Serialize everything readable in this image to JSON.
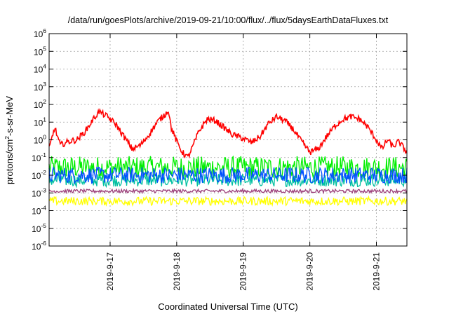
{
  "chart_data": {
    "type": "line",
    "title": "/data/run/goesPlots/archive/2019-09-21/10:00/flux/../flux/5daysEarthDataFluxes.txt",
    "xlabel": "Coordinated Universal Time (UTC)",
    "ylabel": {
      "prefix": "protons/cm",
      "exponent": "2",
      "suffix": "-s-sr-MeV"
    },
    "y_scale": "log",
    "ylim": [
      1e-06,
      1000000.0
    ],
    "y_ticks": [
      {
        "base": "10",
        "exp": "-6",
        "value": 1e-06
      },
      {
        "base": "10",
        "exp": "-5",
        "value": 1e-05
      },
      {
        "base": "10",
        "exp": "-4",
        "value": 0.0001
      },
      {
        "base": "10",
        "exp": "-3",
        "value": 0.001
      },
      {
        "base": "10",
        "exp": "-2",
        "value": 0.01
      },
      {
        "base": "10",
        "exp": "-1",
        "value": 0.1
      },
      {
        "base": "10",
        "exp": "0",
        "value": 1.0
      },
      {
        "base": "10",
        "exp": "1",
        "value": 10.0
      },
      {
        "base": "10",
        "exp": "2",
        "value": 100.0
      },
      {
        "base": "10",
        "exp": "3",
        "value": 1000.0
      },
      {
        "base": "10",
        "exp": "4",
        "value": 10000.0
      },
      {
        "base": "10",
        "exp": "5",
        "value": 100000.0
      },
      {
        "base": "10",
        "exp": "6",
        "value": 1000000.0
      }
    ],
    "xlim": [
      "2019-09-16 02:00",
      "2019-09-21 11:00"
    ],
    "x_ticks": [
      "2019-9-17",
      "2019-9-18",
      "2019-9-19",
      "2019-9-20",
      "2019-9-21"
    ],
    "x_tick_dates": [
      "2019-09-17 00:00",
      "2019-09-18 00:00",
      "2019-09-19 00:00",
      "2019-09-20 00:00",
      "2019-09-21 00:00"
    ],
    "grid": true,
    "legend": "none",
    "series": [
      {
        "color": "#ff0000",
        "style": "noisy",
        "points": [
          [
            "2019-09-16 02:00",
            0.3
          ],
          [
            "2019-09-16 04:00",
            5
          ],
          [
            "2019-09-16 06:00",
            0.5
          ],
          [
            "2019-09-16 09:00",
            0.8
          ],
          [
            "2019-09-16 12:00",
            1.0
          ],
          [
            "2019-09-16 15:00",
            3
          ],
          [
            "2019-09-16 18:00",
            15
          ],
          [
            "2019-09-16 20:00",
            40
          ],
          [
            "2019-09-16 23:00",
            20
          ],
          [
            "2019-09-17 02:00",
            8
          ],
          [
            "2019-09-17 05:00",
            1.5
          ],
          [
            "2019-09-17 08:00",
            0.3
          ],
          [
            "2019-09-17 11:00",
            0.5
          ],
          [
            "2019-09-17 14:00",
            2
          ],
          [
            "2019-09-17 17:00",
            10
          ],
          [
            "2019-09-17 20:00",
            30
          ],
          [
            "2019-09-17 21:00",
            50
          ],
          [
            "2019-09-17 22:00",
            5
          ],
          [
            "2019-09-18 00:00",
            0.8
          ],
          [
            "2019-09-18 02:00",
            0.2
          ],
          [
            "2019-09-18 04:00",
            0.1
          ],
          [
            "2019-09-18 06:00",
            0.5
          ],
          [
            "2019-09-18 08:00",
            3
          ],
          [
            "2019-09-18 11:00",
            15
          ],
          [
            "2019-09-18 14:00",
            12
          ],
          [
            "2019-09-18 17:00",
            5
          ],
          [
            "2019-09-18 20:00",
            2
          ],
          [
            "2019-09-19 00:00",
            1.2
          ],
          [
            "2019-09-19 03:00",
            0.7
          ],
          [
            "2019-09-19 06:00",
            1.5
          ],
          [
            "2019-09-19 09:00",
            8
          ],
          [
            "2019-09-19 12:00",
            20
          ],
          [
            "2019-09-19 15:00",
            12
          ],
          [
            "2019-09-19 18:00",
            4
          ],
          [
            "2019-09-19 21:00",
            0.8
          ],
          [
            "2019-09-20 00:00",
            0.2
          ],
          [
            "2019-09-20 03:00",
            0.3
          ],
          [
            "2019-09-20 06:00",
            1.5
          ],
          [
            "2019-09-20 09:00",
            6
          ],
          [
            "2019-09-20 12:00",
            15
          ],
          [
            "2019-09-20 15:00",
            20
          ],
          [
            "2019-09-20 18:00",
            15
          ],
          [
            "2019-09-20 21:00",
            5
          ],
          [
            "2019-09-21 00:00",
            1
          ],
          [
            "2019-09-21 02:00",
            0.3
          ],
          [
            "2019-09-21 04:00",
            1.0
          ],
          [
            "2019-09-21 06:00",
            0.4
          ],
          [
            "2019-09-21 08:00",
            0.8
          ],
          [
            "2019-09-21 11:00",
            0.2
          ]
        ]
      },
      {
        "color": "#00ee00",
        "style": "band",
        "low": 0.003,
        "high": 0.12
      },
      {
        "color": "#00c0a0",
        "style": "band",
        "low": 0.0015,
        "high": 0.012
      },
      {
        "color": "#0050ff",
        "style": "band",
        "low": 0.002,
        "high": 0.03
      },
      {
        "color": "#9b3f7a",
        "style": "band",
        "low": 0.0009,
        "high": 0.0016
      },
      {
        "color": "#ffff00",
        "style": "band",
        "low": 0.00015,
        "high": 0.0006
      }
    ]
  }
}
